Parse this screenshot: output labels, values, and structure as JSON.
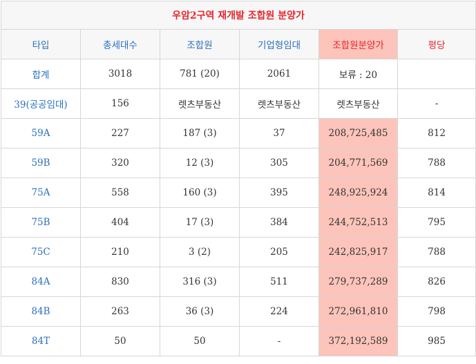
{
  "title": "우암2구역 재개발 조합원 분양가",
  "headers": [
    "타입",
    "총세대수",
    "조합원",
    "기업형임대",
    "조합원분양가",
    "평당"
  ],
  "colors": {
    "title": "#e8262d",
    "header_text": "#2a6fbe",
    "highlight_bg": "#fcc4ba",
    "border": "#d6d6d6"
  },
  "rows": [
    [
      "합계",
      "3018",
      "781 (20)",
      "2061",
      "보류 : 20",
      ""
    ],
    [
      "39(공공임대)",
      "156",
      "렛츠부동산",
      "렛츠부동산",
      "렛츠부동산",
      "-"
    ],
    [
      "59A",
      "227",
      "187 (3)",
      "37",
      "208,725,485",
      "812"
    ],
    [
      "59B",
      "320",
      "12 (3)",
      "305",
      "204,771,569",
      "788"
    ],
    [
      "75A",
      "558",
      "160 (3)",
      "395",
      "248,925,924",
      "814"
    ],
    [
      "75B",
      "404",
      "17 (3)",
      "384",
      "244,752,513",
      "795"
    ],
    [
      "75C",
      "210",
      "3 (2)",
      "205",
      "242,825,917",
      "788"
    ],
    [
      "84A",
      "830",
      "316 (3)",
      "511",
      "279,737,289",
      "826"
    ],
    [
      "84B",
      "263",
      "36 (3)",
      "224",
      "272,961,810",
      "798"
    ],
    [
      "84T",
      "50",
      "50",
      "-",
      "372,192,589",
      "985"
    ]
  ]
}
